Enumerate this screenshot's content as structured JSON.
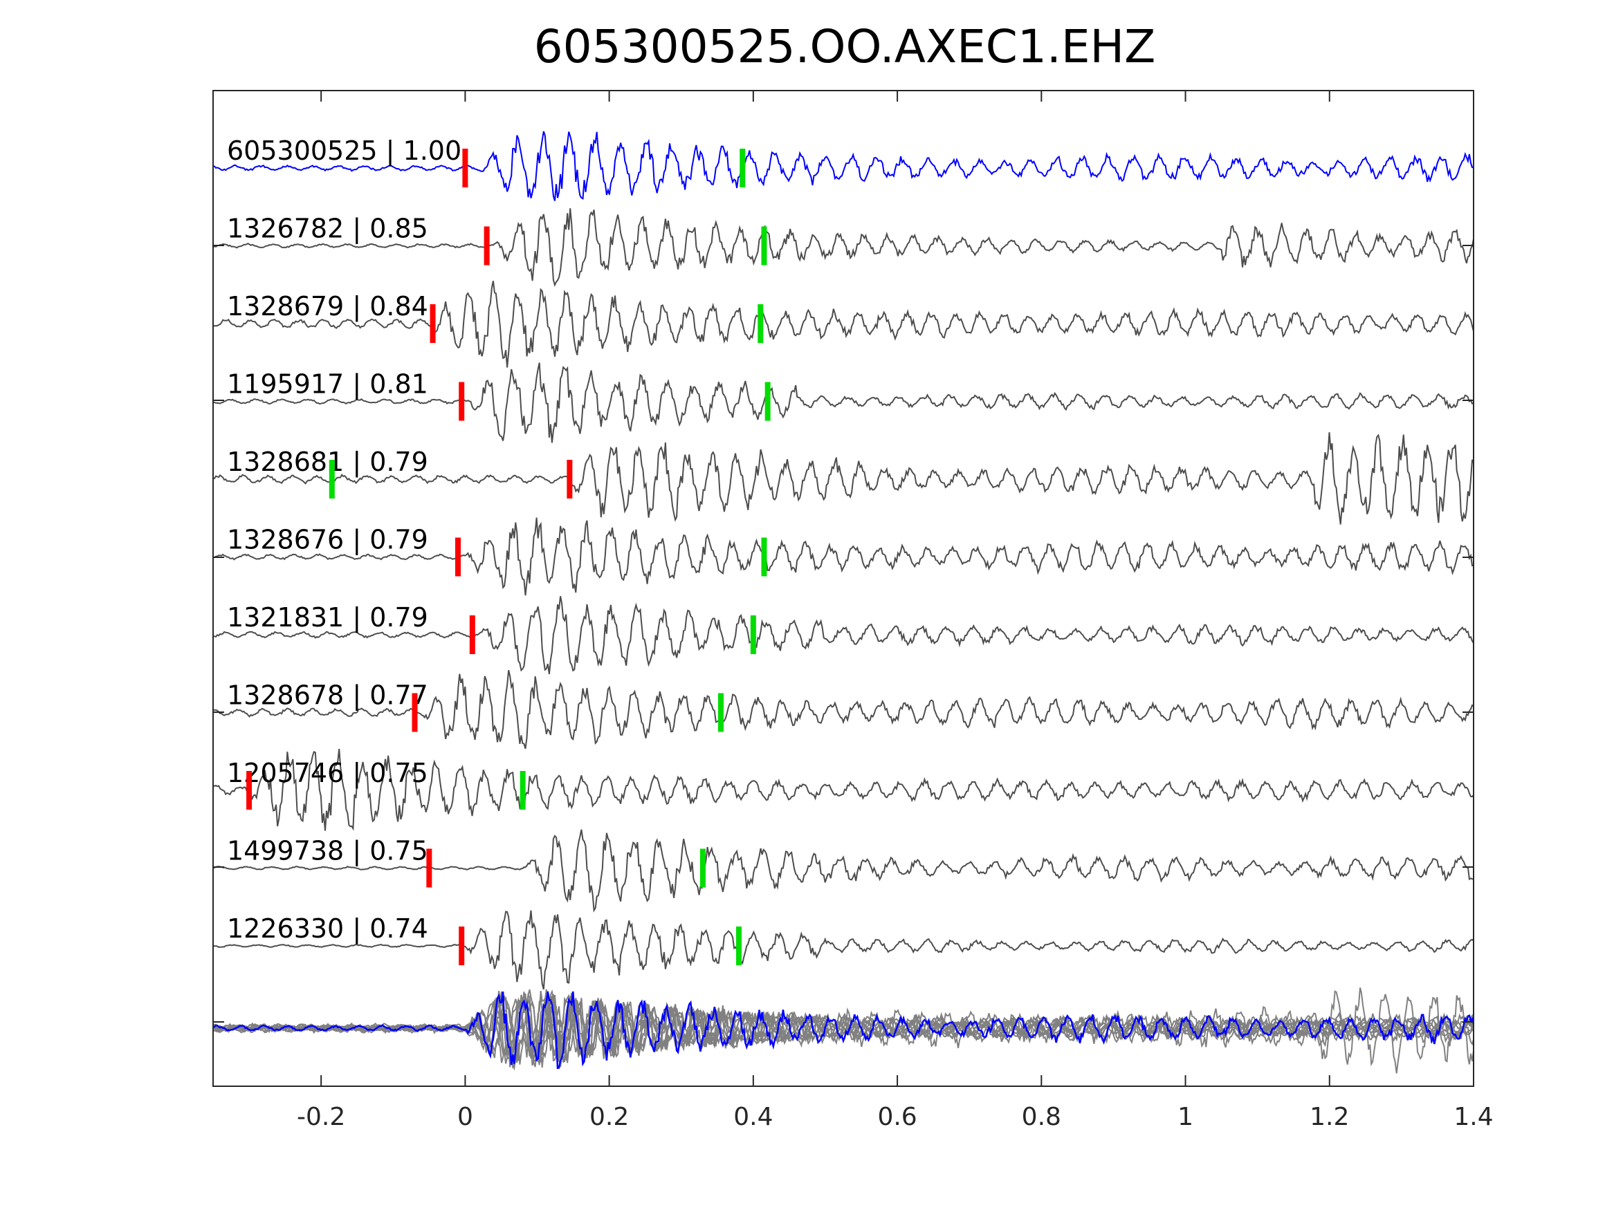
{
  "chart_data": {
    "type": "line",
    "title": "605300525.OO.AXEC1.EHZ",
    "xlabel": "",
    "ylabel": "",
    "xlim": [
      -0.35,
      1.4
    ],
    "x_ticks": [
      "-0.2",
      "0",
      "0.2",
      "0.4",
      "0.6",
      "0.8",
      "1",
      "1.2",
      "1.4"
    ],
    "x_tick_values": [
      -0.2,
      0,
      0.2,
      0.4,
      0.6,
      0.8,
      1,
      1.2,
      1.4
    ],
    "grid": false,
    "colors": {
      "template": "#0000ff",
      "neighbor": "#4d4d4d",
      "stack": "#808080",
      "p_pick": "#ff0000",
      "s_pick": "#00dd00",
      "axis": "#262626"
    },
    "series": [
      {
        "label": "605300525 | 1.00",
        "event_id": "605300525",
        "correlation": 1.0,
        "p_pick": 0.0,
        "s_pick": 0.385,
        "onset": 0.02,
        "end": 0.5,
        "noise": 0.2,
        "late_amp": 0.3,
        "seed": 11,
        "template": true
      },
      {
        "label": "1326782 | 0.85",
        "event_id": "1326782",
        "correlation": 0.85,
        "p_pick": 0.03,
        "s_pick": 0.415,
        "onset": 0.04,
        "end": 1.05,
        "noise": 0.15,
        "late_amp": 0.55,
        "seed": 23
      },
      {
        "label": "1328679 | 0.84",
        "event_id": "1328679",
        "correlation": 0.84,
        "p_pick": -0.045,
        "s_pick": 0.41,
        "onset": -0.05,
        "end": 0.52,
        "noise": 0.35,
        "late_amp": 0.25,
        "seed": 37
      },
      {
        "label": "1195917 | 0.81",
        "event_id": "1195917",
        "correlation": 0.81,
        "p_pick": -0.005,
        "s_pick": 0.42,
        "onset": 0.0,
        "end": 0.46,
        "noise": 0.18,
        "late_amp": 0.15,
        "seed": 41
      },
      {
        "label": "1328681 | 0.79",
        "event_id": "1328681",
        "correlation": 0.79,
        "p_pick": 0.145,
        "s_pick": -0.185,
        "onset": 0.14,
        "end": 0.55,
        "noise": 0.3,
        "late_amp": 0.3,
        "seed": 53,
        "burst": [
          1.18,
          1.4
        ]
      },
      {
        "label": "1328676 | 0.79",
        "event_id": "1328676",
        "correlation": 0.79,
        "p_pick": -0.01,
        "s_pick": 0.415,
        "onset": 0.0,
        "end": 0.62,
        "noise": 0.2,
        "late_amp": 0.35,
        "seed": 67
      },
      {
        "label": "1321831 | 0.79",
        "event_id": "1321831",
        "correlation": 0.79,
        "p_pick": 0.01,
        "s_pick": 0.4,
        "onset": 0.02,
        "end": 0.5,
        "noise": 0.22,
        "late_amp": 0.2,
        "seed": 71
      },
      {
        "label": "1328678 | 0.77",
        "event_id": "1328678",
        "correlation": 0.77,
        "p_pick": -0.07,
        "s_pick": 0.355,
        "onset": -0.06,
        "end": 0.6,
        "noise": 0.3,
        "late_amp": 0.3,
        "seed": 83
      },
      {
        "label": "1205746 | 0.75",
        "event_id": "1205746",
        "correlation": 0.75,
        "p_pick": -0.3,
        "s_pick": 0.08,
        "onset": -0.3,
        "end": 0.45,
        "noise": 0.4,
        "late_amp": 0.15,
        "seed": 97
      },
      {
        "label": "1499738 | 0.75",
        "event_id": "1499738",
        "correlation": 0.75,
        "p_pick": -0.05,
        "s_pick": 0.33,
        "onset": 0.08,
        "end": 0.55,
        "noise": 0.12,
        "late_amp": 0.3,
        "seed": 101
      },
      {
        "label": "1226330 | 0.74",
        "event_id": "1226330",
        "correlation": 0.74,
        "p_pick": -0.005,
        "s_pick": 0.38,
        "onset": 0.0,
        "end": 0.5,
        "noise": 0.1,
        "late_amp": 0.15,
        "seed": 113
      }
    ],
    "stack": {
      "description_color": "#808080",
      "template_color": "#0000ff"
    }
  }
}
